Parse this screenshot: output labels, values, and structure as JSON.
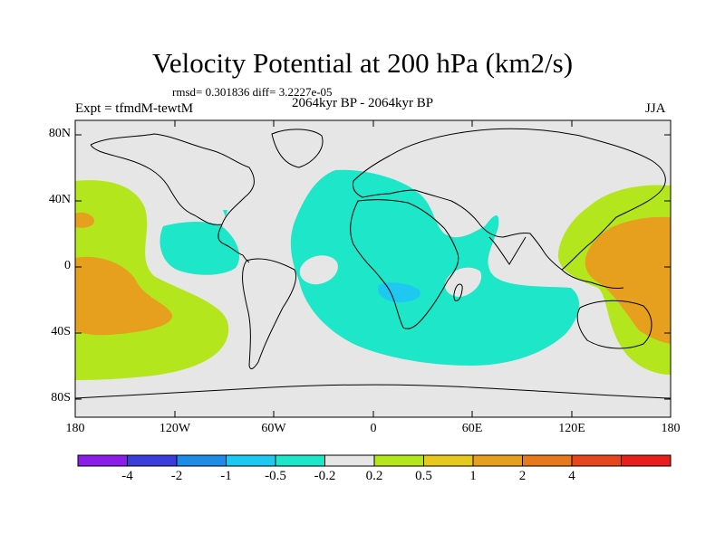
{
  "title": "Velocity Potential at 200 hPa (km2/s)",
  "stats_line": "rmsd= 0.301836 diff= 3.2227e-05",
  "period_label": "2064kyr BP - 2064kyr BP",
  "experiment_label": "Expt = tfmdM-tewtM",
  "season_label": "JJA",
  "map": {
    "lon_range": [
      -180,
      180
    ],
    "lat_range": [
      -90,
      90
    ],
    "background_color": "#e6e6e6",
    "y_axis_labels": [
      "80N",
      "40N",
      "0",
      "40S",
      "80S"
    ],
    "x_axis_labels": [
      "180",
      "120W",
      "60W",
      "0",
      "60E",
      "120E",
      "180"
    ]
  },
  "colorbar": {
    "colors": [
      "#8a1ee6",
      "#3c3cdc",
      "#1e8ce6",
      "#1ec8f0",
      "#1ee6c8",
      "#e6e6e6",
      "#b4e61e",
      "#e6c81e",
      "#e6a01e",
      "#e6781e",
      "#e6461e",
      "#e61e1e"
    ],
    "labels": [
      "-4",
      "-2",
      "-1",
      "-0.5",
      "-0.2",
      "0.2",
      "0.5",
      "1",
      "2",
      "4"
    ]
  }
}
